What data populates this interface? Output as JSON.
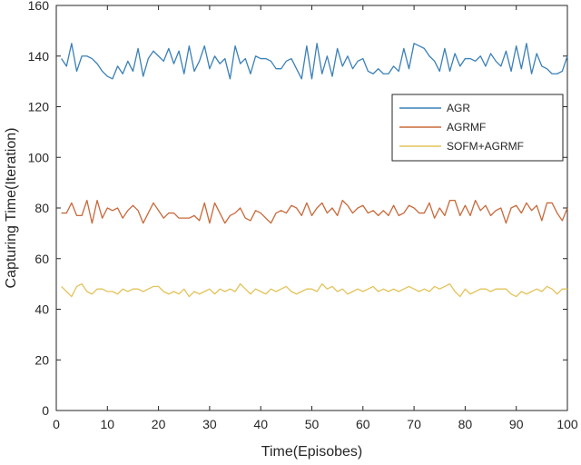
{
  "chart_data": {
    "type": "line",
    "title": "",
    "xlabel": "Time(Episobes)",
    "ylabel": "Capturing Time(Iteration)",
    "xlim": [
      0,
      100
    ],
    "ylim": [
      0,
      160
    ],
    "xticks": [
      0,
      10,
      20,
      30,
      40,
      50,
      60,
      70,
      80,
      90,
      100
    ],
    "yticks": [
      0,
      20,
      40,
      60,
      80,
      100,
      120,
      140,
      160
    ],
    "grid": false,
    "legend_position": "right",
    "x": [
      1,
      2,
      3,
      4,
      5,
      6,
      7,
      8,
      9,
      10,
      11,
      12,
      13,
      14,
      15,
      16,
      17,
      18,
      19,
      20,
      21,
      22,
      23,
      24,
      25,
      26,
      27,
      28,
      29,
      30,
      31,
      32,
      33,
      34,
      35,
      36,
      37,
      38,
      39,
      40,
      41,
      42,
      43,
      44,
      45,
      46,
      47,
      48,
      49,
      50,
      51,
      52,
      53,
      54,
      55,
      56,
      57,
      58,
      59,
      60,
      61,
      62,
      63,
      64,
      65,
      66,
      67,
      68,
      69,
      70,
      71,
      72,
      73,
      74,
      75,
      76,
      77,
      78,
      79,
      80,
      81,
      82,
      83,
      84,
      85,
      86,
      87,
      88,
      89,
      90,
      91,
      92,
      93,
      94,
      95,
      96,
      97,
      98,
      99,
      100
    ],
    "series": [
      {
        "name": "AGR",
        "color": "#3a80b8",
        "values": [
          139,
          136,
          145,
          134,
          140,
          140,
          139,
          137,
          134,
          132,
          131,
          136,
          133,
          138,
          134,
          143,
          132,
          139,
          142,
          140,
          138,
          143,
          137,
          142,
          133,
          144,
          134,
          138,
          144,
          135,
          140,
          137,
          139,
          131,
          144,
          137,
          139,
          133,
          140,
          139,
          139,
          138,
          135,
          135,
          138,
          139,
          135,
          131,
          144,
          131,
          145,
          133,
          140,
          132,
          143,
          136,
          140,
          135,
          138,
          139,
          134,
          133,
          135,
          133,
          133,
          136,
          134,
          143,
          135,
          145,
          144,
          143,
          140,
          138,
          134,
          143,
          134,
          141,
          136,
          139,
          139,
          138,
          140,
          136,
          141,
          138,
          136,
          142,
          134,
          144,
          135,
          145,
          133,
          141,
          136,
          135,
          133,
          133,
          134,
          140
        ]
      },
      {
        "name": "AGRMF",
        "color": "#c8693a",
        "values": [
          78,
          78,
          82,
          77,
          77,
          83,
          74,
          83,
          76,
          80,
          79,
          80,
          76,
          79,
          81,
          79,
          74,
          78,
          82,
          79,
          76,
          78,
          78,
          76,
          76,
          76,
          77,
          75,
          82,
          74,
          82,
          78,
          74,
          77,
          78,
          80,
          76,
          75,
          79,
          78,
          76,
          74,
          78,
          79,
          78,
          81,
          80,
          77,
          82,
          77,
          80,
          82,
          78,
          80,
          77,
          83,
          81,
          78,
          80,
          81,
          78,
          79,
          77,
          79,
          77,
          81,
          77,
          78,
          81,
          80,
          78,
          78,
          82,
          76,
          80,
          77,
          83,
          83,
          77,
          81,
          77,
          83,
          79,
          81,
          77,
          79,
          80,
          74,
          80,
          81,
          78,
          82,
          79,
          81,
          75,
          82,
          82,
          78,
          75,
          80
        ]
      },
      {
        "name": "SOFM+AGRMF",
        "color": "#e3c35a",
        "values": [
          49,
          47,
          45,
          49,
          50,
          47,
          46,
          48,
          48,
          47,
          47,
          46,
          48,
          47,
          48,
          48,
          47,
          48,
          49,
          49,
          47,
          46,
          47,
          46,
          48,
          45,
          47,
          46,
          47,
          48,
          46,
          48,
          47,
          48,
          47,
          50,
          48,
          46,
          48,
          47,
          46,
          48,
          47,
          48,
          49,
          47,
          46,
          47,
          48,
          48,
          47,
          50,
          48,
          49,
          47,
          48,
          46,
          47,
          48,
          47,
          48,
          49,
          47,
          48,
          47,
          48,
          47,
          48,
          49,
          48,
          47,
          48,
          47,
          49,
          48,
          49,
          50,
          47,
          45,
          48,
          46,
          47,
          48,
          48,
          47,
          48,
          48,
          48,
          46,
          45,
          47,
          46,
          47,
          48,
          47,
          49,
          48,
          46,
          48,
          48
        ]
      }
    ]
  }
}
